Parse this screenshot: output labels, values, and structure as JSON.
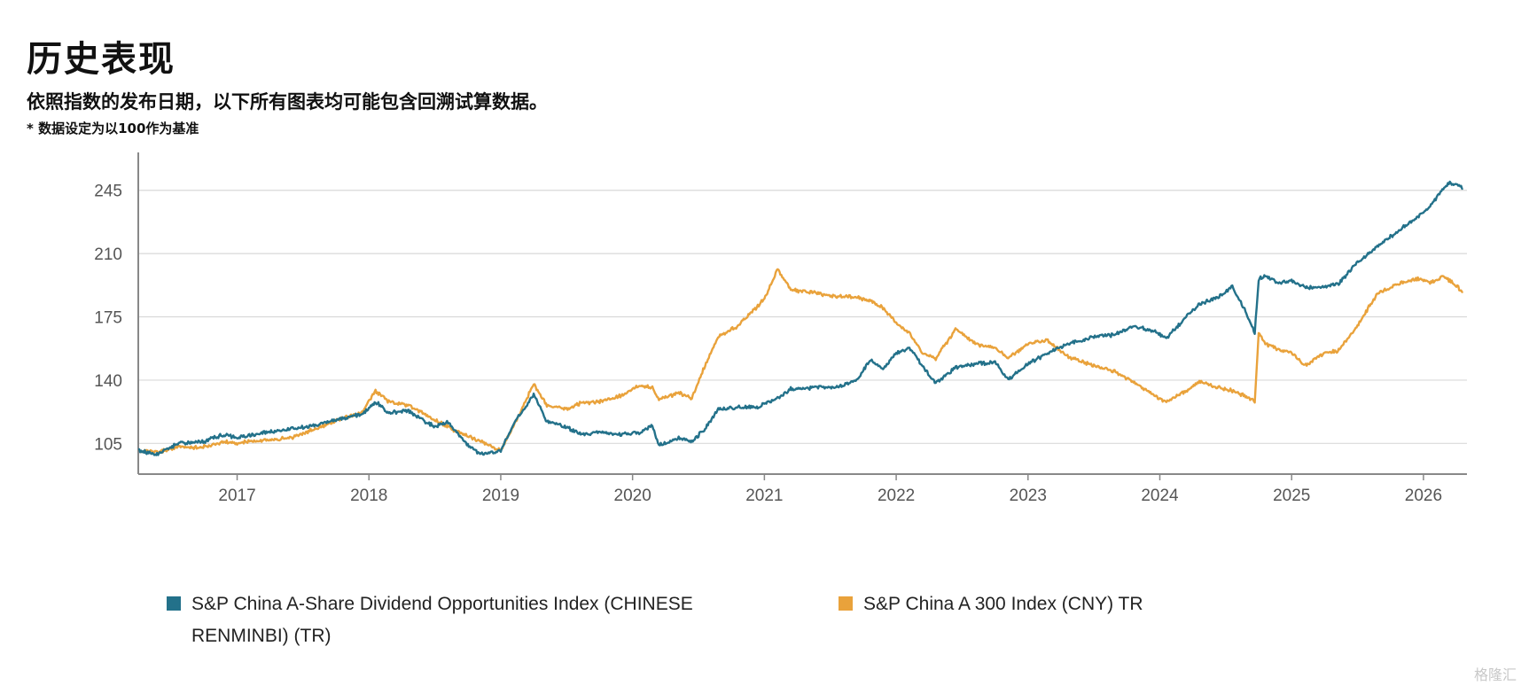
{
  "title": "历史表现",
  "subtitle": "依照指数的发布日期，以下所有图表均可能包含回溯试算数据。",
  "note": "* 数据设定为以100作为基准",
  "watermark": "格隆汇",
  "chart_data": {
    "type": "line",
    "xlim": [
      2016.25,
      2026.33
    ],
    "ylim": [
      88,
      263
    ],
    "x_ticks": [
      2017,
      2018,
      2019,
      2020,
      2021,
      2022,
      2023,
      2024,
      2025,
      2026
    ],
    "x_tick_labels": [
      "2017",
      "2018",
      "2019",
      "2020",
      "2021",
      "2022",
      "2023",
      "2024",
      "2025",
      "2026"
    ],
    "y_ticks": [
      105,
      140,
      175,
      210,
      245
    ],
    "y_tick_labels": [
      "105",
      "140",
      "175",
      "210",
      "245"
    ],
    "grid": "horizontal",
    "legend_position": "bottom",
    "series": [
      {
        "name": "S&P China A-Share Dividend Opportunities Index (CHINESE RENMINBI) (TR)",
        "color": "#23718a",
        "points": [
          [
            2016.25,
            101
          ],
          [
            2016.4,
            99
          ],
          [
            2016.55,
            105
          ],
          [
            2016.75,
            106
          ],
          [
            2016.9,
            110
          ],
          [
            2017.0,
            108
          ],
          [
            2017.2,
            111
          ],
          [
            2017.4,
            113
          ],
          [
            2017.6,
            115
          ],
          [
            2017.8,
            119
          ],
          [
            2017.95,
            121
          ],
          [
            2018.05,
            128
          ],
          [
            2018.15,
            122
          ],
          [
            2018.3,
            123
          ],
          [
            2018.5,
            114
          ],
          [
            2018.6,
            117
          ],
          [
            2018.75,
            104
          ],
          [
            2018.85,
            99
          ],
          [
            2019.0,
            101
          ],
          [
            2019.1,
            116
          ],
          [
            2019.25,
            132
          ],
          [
            2019.35,
            117
          ],
          [
            2019.5,
            114
          ],
          [
            2019.6,
            110
          ],
          [
            2019.75,
            111
          ],
          [
            2019.9,
            110
          ],
          [
            2020.05,
            111
          ],
          [
            2020.15,
            115
          ],
          [
            2020.2,
            104
          ],
          [
            2020.35,
            108
          ],
          [
            2020.45,
            106
          ],
          [
            2020.55,
            113
          ],
          [
            2020.65,
            124
          ],
          [
            2020.8,
            125
          ],
          [
            2020.95,
            125
          ],
          [
            2021.0,
            127
          ],
          [
            2021.1,
            130
          ],
          [
            2021.2,
            135
          ],
          [
            2021.4,
            136
          ],
          [
            2021.55,
            136
          ],
          [
            2021.7,
            140
          ],
          [
            2021.8,
            151
          ],
          [
            2021.9,
            146
          ],
          [
            2022.0,
            155
          ],
          [
            2022.1,
            158
          ],
          [
            2022.2,
            148
          ],
          [
            2022.3,
            138
          ],
          [
            2022.45,
            147
          ],
          [
            2022.6,
            149
          ],
          [
            2022.75,
            150
          ],
          [
            2022.85,
            140
          ],
          [
            2023.0,
            149
          ],
          [
            2023.15,
            155
          ],
          [
            2023.3,
            160
          ],
          [
            2023.5,
            164
          ],
          [
            2023.65,
            165
          ],
          [
            2023.8,
            170
          ],
          [
            2023.95,
            167
          ],
          [
            2024.05,
            163
          ],
          [
            2024.2,
            175
          ],
          [
            2024.3,
            182
          ],
          [
            2024.45,
            186
          ],
          [
            2024.55,
            192
          ],
          [
            2024.65,
            178
          ],
          [
            2024.72,
            166
          ],
          [
            2024.75,
            196
          ],
          [
            2024.8,
            198
          ],
          [
            2024.9,
            194
          ],
          [
            2025.0,
            195
          ],
          [
            2025.1,
            191
          ],
          [
            2025.25,
            192
          ],
          [
            2025.35,
            193
          ],
          [
            2025.5,
            205
          ],
          [
            2025.65,
            214
          ],
          [
            2025.8,
            222
          ],
          [
            2025.95,
            230
          ],
          [
            2026.05,
            236
          ],
          [
            2026.15,
            246
          ],
          [
            2026.2,
            249
          ],
          [
            2026.25,
            248
          ],
          [
            2026.3,
            246
          ]
        ]
      },
      {
        "name": "S&P China A 300 Index (CNY) TR",
        "color": "#e9a23b",
        "points": [
          [
            2016.25,
            101
          ],
          [
            2016.4,
            100
          ],
          [
            2016.55,
            103
          ],
          [
            2016.75,
            103
          ],
          [
            2016.9,
            106
          ],
          [
            2017.0,
            105
          ],
          [
            2017.2,
            107
          ],
          [
            2017.4,
            108
          ],
          [
            2017.6,
            113
          ],
          [
            2017.8,
            119
          ],
          [
            2017.95,
            122
          ],
          [
            2018.05,
            134
          ],
          [
            2018.15,
            128
          ],
          [
            2018.3,
            126
          ],
          [
            2018.5,
            118
          ],
          [
            2018.6,
            114
          ],
          [
            2018.75,
            109
          ],
          [
            2018.85,
            106
          ],
          [
            2019.0,
            101
          ],
          [
            2019.1,
            115
          ],
          [
            2019.25,
            138
          ],
          [
            2019.35,
            126
          ],
          [
            2019.5,
            124
          ],
          [
            2019.6,
            127
          ],
          [
            2019.75,
            128
          ],
          [
            2019.9,
            131
          ],
          [
            2020.05,
            137
          ],
          [
            2020.15,
            136
          ],
          [
            2020.2,
            129
          ],
          [
            2020.35,
            133
          ],
          [
            2020.45,
            130
          ],
          [
            2020.55,
            148
          ],
          [
            2020.65,
            164
          ],
          [
            2020.8,
            170
          ],
          [
            2020.95,
            181
          ],
          [
            2021.0,
            185
          ],
          [
            2021.1,
            201
          ],
          [
            2021.2,
            190
          ],
          [
            2021.4,
            188
          ],
          [
            2021.55,
            186
          ],
          [
            2021.7,
            186
          ],
          [
            2021.8,
            184
          ],
          [
            2021.9,
            180
          ],
          [
            2022.0,
            172
          ],
          [
            2022.1,
            166
          ],
          [
            2022.2,
            155
          ],
          [
            2022.3,
            152
          ],
          [
            2022.45,
            168
          ],
          [
            2022.6,
            160
          ],
          [
            2022.75,
            158
          ],
          [
            2022.85,
            152
          ],
          [
            2023.0,
            160
          ],
          [
            2023.15,
            162
          ],
          [
            2023.3,
            153
          ],
          [
            2023.5,
            148
          ],
          [
            2023.65,
            145
          ],
          [
            2023.8,
            139
          ],
          [
            2023.95,
            132
          ],
          [
            2024.05,
            128
          ],
          [
            2024.2,
            134
          ],
          [
            2024.3,
            139
          ],
          [
            2024.45,
            136
          ],
          [
            2024.55,
            134
          ],
          [
            2024.65,
            131
          ],
          [
            2024.72,
            128
          ],
          [
            2024.75,
            166
          ],
          [
            2024.8,
            160
          ],
          [
            2024.9,
            157
          ],
          [
            2025.0,
            155
          ],
          [
            2025.1,
            148
          ],
          [
            2025.25,
            155
          ],
          [
            2025.35,
            156
          ],
          [
            2025.5,
            170
          ],
          [
            2025.65,
            188
          ],
          [
            2025.8,
            193
          ],
          [
            2025.95,
            196
          ],
          [
            2026.05,
            194
          ],
          [
            2026.15,
            197
          ],
          [
            2026.2,
            195
          ],
          [
            2026.25,
            192
          ],
          [
            2026.3,
            189
          ]
        ]
      }
    ]
  }
}
